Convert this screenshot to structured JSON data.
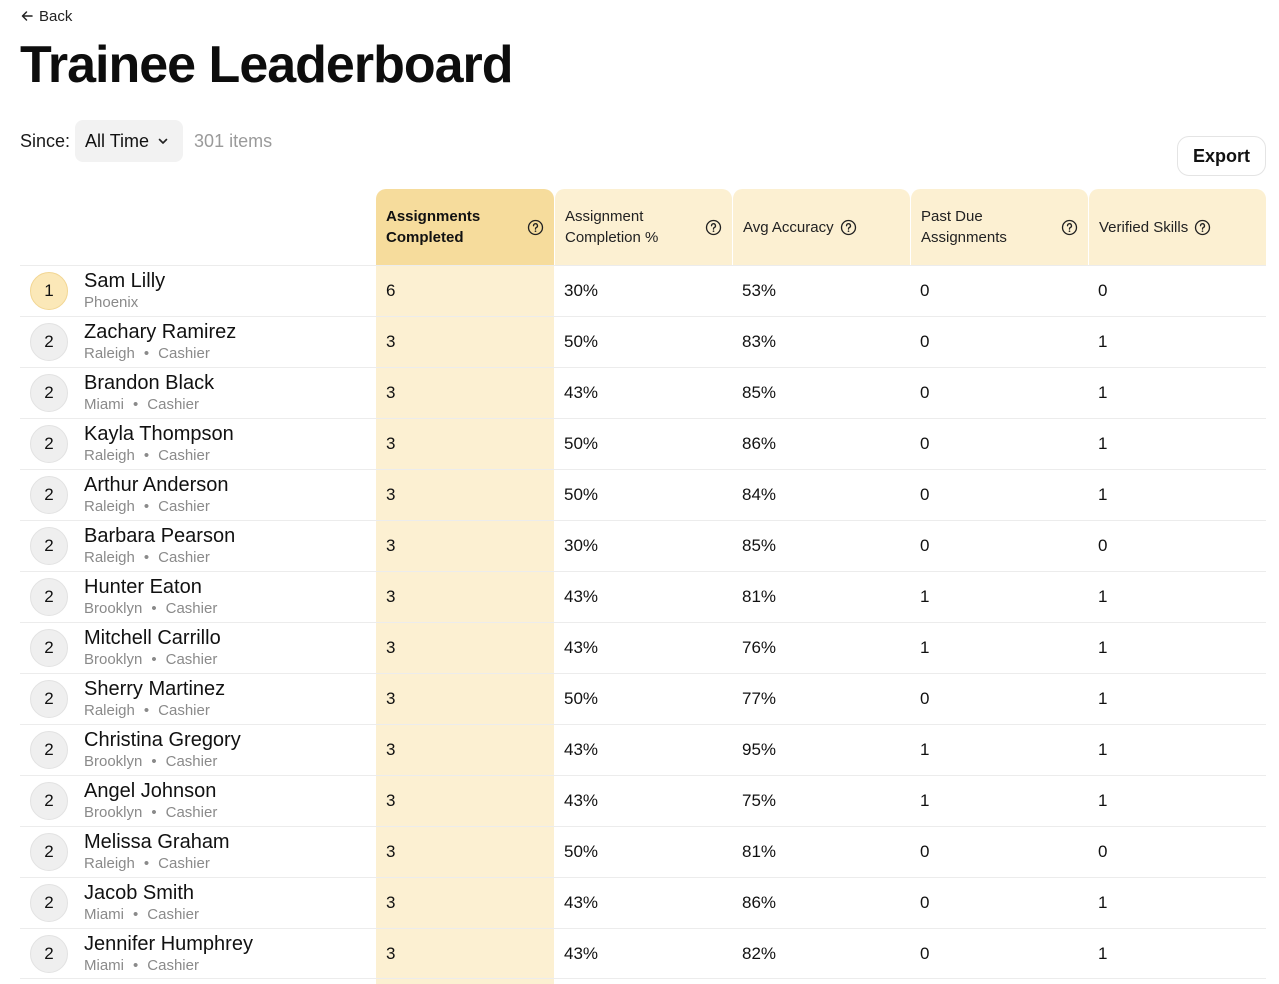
{
  "nav": {
    "back_label": "Back"
  },
  "page": {
    "title": "Trainee Leaderboard"
  },
  "filters": {
    "since_label": "Since:",
    "since_value": "All Time",
    "item_count": "301 items"
  },
  "actions": {
    "export_label": "Export"
  },
  "columns": [
    {
      "label": "Assignments Completed",
      "active": true
    },
    {
      "label": "Assignment Completion %",
      "active": false
    },
    {
      "label": "Avg Accuracy",
      "active": false
    },
    {
      "label": "Past Due Assignments",
      "active": false
    },
    {
      "label": "Verified Skills",
      "active": false
    }
  ],
  "rows": [
    {
      "rank": "1",
      "name": "Sam Lilly",
      "location": "Phoenix",
      "role": "",
      "completed": "6",
      "completion_pct": "30%",
      "accuracy": "53%",
      "past_due": "0",
      "verified_skills": "0"
    },
    {
      "rank": "2",
      "name": "Zachary Ramirez",
      "location": "Raleigh",
      "role": "Cashier",
      "completed": "3",
      "completion_pct": "50%",
      "accuracy": "83%",
      "past_due": "0",
      "verified_skills": "1"
    },
    {
      "rank": "2",
      "name": "Brandon Black",
      "location": "Miami",
      "role": "Cashier",
      "completed": "3",
      "completion_pct": "43%",
      "accuracy": "85%",
      "past_due": "0",
      "verified_skills": "1"
    },
    {
      "rank": "2",
      "name": "Kayla Thompson",
      "location": "Raleigh",
      "role": "Cashier",
      "completed": "3",
      "completion_pct": "50%",
      "accuracy": "86%",
      "past_due": "0",
      "verified_skills": "1"
    },
    {
      "rank": "2",
      "name": "Arthur Anderson",
      "location": "Raleigh",
      "role": "Cashier",
      "completed": "3",
      "completion_pct": "50%",
      "accuracy": "84%",
      "past_due": "0",
      "verified_skills": "1"
    },
    {
      "rank": "2",
      "name": "Barbara Pearson",
      "location": "Raleigh",
      "role": "Cashier",
      "completed": "3",
      "completion_pct": "30%",
      "accuracy": "85%",
      "past_due": "0",
      "verified_skills": "0"
    },
    {
      "rank": "2",
      "name": "Hunter Eaton",
      "location": "Brooklyn",
      "role": "Cashier",
      "completed": "3",
      "completion_pct": "43%",
      "accuracy": "81%",
      "past_due": "1",
      "verified_skills": "1"
    },
    {
      "rank": "2",
      "name": "Mitchell Carrillo",
      "location": "Brooklyn",
      "role": "Cashier",
      "completed": "3",
      "completion_pct": "43%",
      "accuracy": "76%",
      "past_due": "1",
      "verified_skills": "1"
    },
    {
      "rank": "2",
      "name": "Sherry Martinez",
      "location": "Raleigh",
      "role": "Cashier",
      "completed": "3",
      "completion_pct": "50%",
      "accuracy": "77%",
      "past_due": "0",
      "verified_skills": "1"
    },
    {
      "rank": "2",
      "name": "Christina Gregory",
      "location": "Brooklyn",
      "role": "Cashier",
      "completed": "3",
      "completion_pct": "43%",
      "accuracy": "95%",
      "past_due": "1",
      "verified_skills": "1"
    },
    {
      "rank": "2",
      "name": "Angel Johnson",
      "location": "Brooklyn",
      "role": "Cashier",
      "completed": "3",
      "completion_pct": "43%",
      "accuracy": "75%",
      "past_due": "1",
      "verified_skills": "1"
    },
    {
      "rank": "2",
      "name": "Melissa Graham",
      "location": "Raleigh",
      "role": "Cashier",
      "completed": "3",
      "completion_pct": "50%",
      "accuracy": "81%",
      "past_due": "0",
      "verified_skills": "0"
    },
    {
      "rank": "2",
      "name": "Jacob Smith",
      "location": "Miami",
      "role": "Cashier",
      "completed": "3",
      "completion_pct": "43%",
      "accuracy": "86%",
      "past_due": "0",
      "verified_skills": "1"
    },
    {
      "rank": "2",
      "name": "Jennifer Humphrey",
      "location": "Miami",
      "role": "Cashier",
      "completed": "3",
      "completion_pct": "43%",
      "accuracy": "82%",
      "past_due": "0",
      "verified_skills": "1"
    }
  ],
  "colors": {
    "active_header": "#f6dc9c",
    "column_tint": "#fcf0d2",
    "first_rank": "#fbe8b8"
  },
  "icons": {
    "back": "arrow-left-icon",
    "dropdown": "chevron-down-icon",
    "help": "question-circle-icon"
  }
}
